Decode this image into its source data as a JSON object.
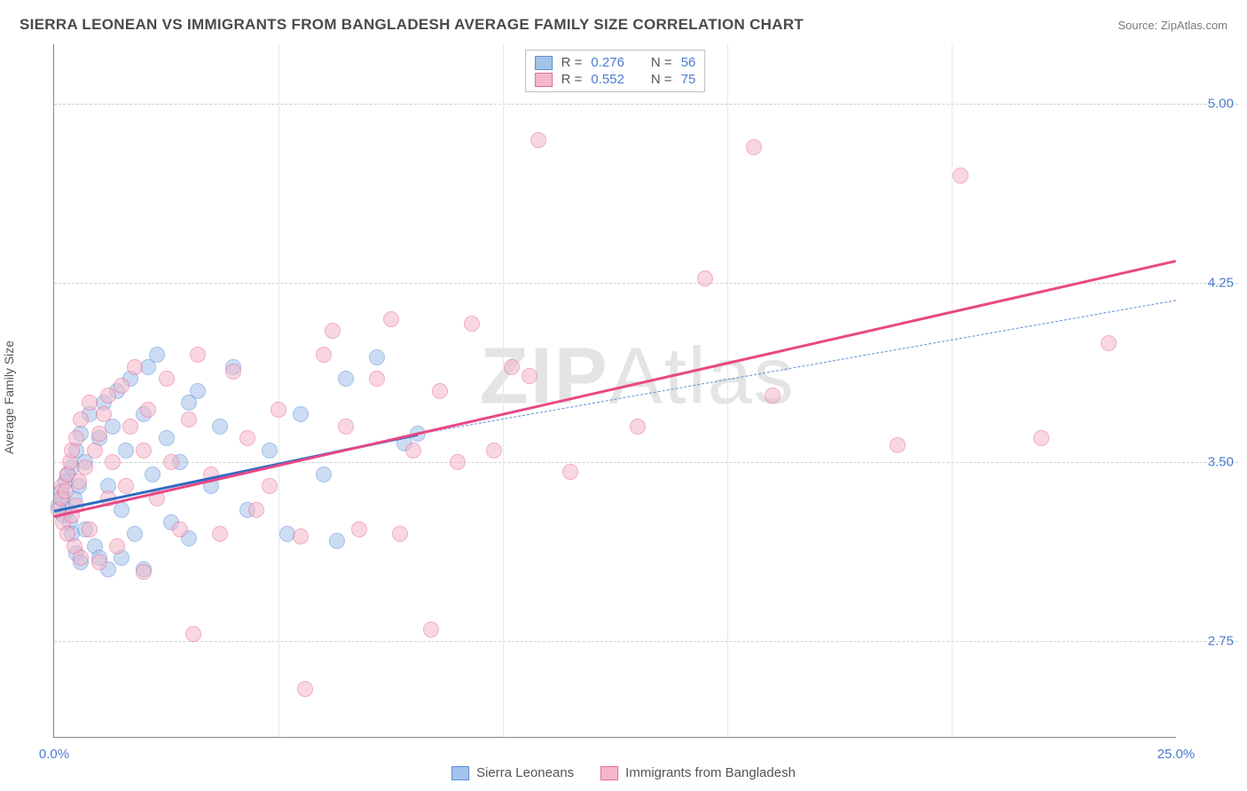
{
  "title": "SIERRA LEONEAN VS IMMIGRANTS FROM BANGLADESH AVERAGE FAMILY SIZE CORRELATION CHART",
  "source": "Source: ZipAtlas.com",
  "watermark_part1": "ZIP",
  "watermark_part2": "Atlas",
  "y_axis_label": "Average Family Size",
  "chart": {
    "type": "scatter",
    "xlim": [
      0,
      25
    ],
    "ylim": [
      2.35,
      5.25
    ],
    "x_ticks": [
      {
        "pos": 0,
        "label": "0.0%"
      },
      {
        "pos": 25,
        "label": "25.0%"
      }
    ],
    "x_minor_ticks": [
      5,
      10,
      15,
      20
    ],
    "y_ticks": [
      {
        "pos": 2.75,
        "label": "2.75"
      },
      {
        "pos": 3.5,
        "label": "3.50"
      },
      {
        "pos": 4.25,
        "label": "4.25"
      },
      {
        "pos": 5.0,
        "label": "5.00"
      }
    ],
    "marker_radius": 9,
    "series": [
      {
        "name": "Sierra Leoneans",
        "fill": "#a3c3eb",
        "stroke": "#5a8ed6",
        "r_value": "0.276",
        "n_value": "56",
        "trend": {
          "x1": 0,
          "y1": 3.3,
          "x2": 8.1,
          "y2": 3.62,
          "solid": true,
          "color": "#2f6bc2",
          "width": 3
        },
        "trend_dashed": {
          "x1": 8.1,
          "y1": 3.62,
          "x2": 25,
          "y2": 4.18,
          "color": "#5a8ed6",
          "width": 1
        },
        "points": [
          [
            0.1,
            3.32
          ],
          [
            0.15,
            3.38
          ],
          [
            0.2,
            3.28
          ],
          [
            0.2,
            3.35
          ],
          [
            0.25,
            3.42
          ],
          [
            0.3,
            3.3
          ],
          [
            0.3,
            3.45
          ],
          [
            0.35,
            3.25
          ],
          [
            0.4,
            3.48
          ],
          [
            0.4,
            3.2
          ],
          [
            0.45,
            3.35
          ],
          [
            0.5,
            3.55
          ],
          [
            0.5,
            3.12
          ],
          [
            0.55,
            3.4
          ],
          [
            0.6,
            3.08
          ],
          [
            0.6,
            3.62
          ],
          [
            0.7,
            3.5
          ],
          [
            0.7,
            3.22
          ],
          [
            0.8,
            3.7
          ],
          [
            0.9,
            3.15
          ],
          [
            1.0,
            3.6
          ],
          [
            1.0,
            3.1
          ],
          [
            1.1,
            3.75
          ],
          [
            1.2,
            3.4
          ],
          [
            1.2,
            3.05
          ],
          [
            1.3,
            3.65
          ],
          [
            1.4,
            3.8
          ],
          [
            1.5,
            3.3
          ],
          [
            1.5,
            3.1
          ],
          [
            1.6,
            3.55
          ],
          [
            1.7,
            3.85
          ],
          [
            1.8,
            3.2
          ],
          [
            2.0,
            3.7
          ],
          [
            2.0,
            3.05
          ],
          [
            2.1,
            3.9
          ],
          [
            2.2,
            3.45
          ],
          [
            2.3,
            3.95
          ],
          [
            2.5,
            3.6
          ],
          [
            2.6,
            3.25
          ],
          [
            2.8,
            3.5
          ],
          [
            3.0,
            3.75
          ],
          [
            3.0,
            3.18
          ],
          [
            3.2,
            3.8
          ],
          [
            3.5,
            3.4
          ],
          [
            3.7,
            3.65
          ],
          [
            4.0,
            3.9
          ],
          [
            4.3,
            3.3
          ],
          [
            4.8,
            3.55
          ],
          [
            5.2,
            3.2
          ],
          [
            5.5,
            3.7
          ],
          [
            6.0,
            3.45
          ],
          [
            6.3,
            3.17
          ],
          [
            6.5,
            3.85
          ],
          [
            7.2,
            3.94
          ],
          [
            7.8,
            3.58
          ],
          [
            8.1,
            3.62
          ]
        ]
      },
      {
        "name": "Immigrants from Bangladesh",
        "fill": "#f5b8ca",
        "stroke": "#e76a94",
        "r_value": "0.552",
        "n_value": "75",
        "trend": {
          "x1": 0,
          "y1": 3.28,
          "x2": 25,
          "y2": 4.35,
          "solid": true,
          "color": "#e84884",
          "width": 3
        },
        "points": [
          [
            0.1,
            3.3
          ],
          [
            0.15,
            3.35
          ],
          [
            0.18,
            3.4
          ],
          [
            0.2,
            3.25
          ],
          [
            0.25,
            3.38
          ],
          [
            0.3,
            3.45
          ],
          [
            0.3,
            3.2
          ],
          [
            0.35,
            3.5
          ],
          [
            0.4,
            3.28
          ],
          [
            0.4,
            3.55
          ],
          [
            0.45,
            3.15
          ],
          [
            0.5,
            3.6
          ],
          [
            0.5,
            3.32
          ],
          [
            0.55,
            3.42
          ],
          [
            0.6,
            3.68
          ],
          [
            0.6,
            3.1
          ],
          [
            0.7,
            3.48
          ],
          [
            0.8,
            3.75
          ],
          [
            0.8,
            3.22
          ],
          [
            0.9,
            3.55
          ],
          [
            1.0,
            3.62
          ],
          [
            1.0,
            3.08
          ],
          [
            1.1,
            3.7
          ],
          [
            1.2,
            3.35
          ],
          [
            1.2,
            3.78
          ],
          [
            1.3,
            3.5
          ],
          [
            1.4,
            3.15
          ],
          [
            1.5,
            3.82
          ],
          [
            1.6,
            3.4
          ],
          [
            1.7,
            3.65
          ],
          [
            1.8,
            3.9
          ],
          [
            2.0,
            3.55
          ],
          [
            2.0,
            3.04
          ],
          [
            2.1,
            3.72
          ],
          [
            2.3,
            3.35
          ],
          [
            2.5,
            3.85
          ],
          [
            2.6,
            3.5
          ],
          [
            2.8,
            3.22
          ],
          [
            3.0,
            3.68
          ],
          [
            3.1,
            2.78
          ],
          [
            3.2,
            3.95
          ],
          [
            3.5,
            3.45
          ],
          [
            3.7,
            3.2
          ],
          [
            4.0,
            3.88
          ],
          [
            4.3,
            3.6
          ],
          [
            4.5,
            3.3
          ],
          [
            4.8,
            3.4
          ],
          [
            5.0,
            3.72
          ],
          [
            5.5,
            3.19
          ],
          [
            5.6,
            2.55
          ],
          [
            6.0,
            3.95
          ],
          [
            6.2,
            4.05
          ],
          [
            6.5,
            3.65
          ],
          [
            6.8,
            3.22
          ],
          [
            7.2,
            3.85
          ],
          [
            7.5,
            4.1
          ],
          [
            7.7,
            3.2
          ],
          [
            8.0,
            3.55
          ],
          [
            8.4,
            2.8
          ],
          [
            8.6,
            3.8
          ],
          [
            9.0,
            3.5
          ],
          [
            9.3,
            4.08
          ],
          [
            9.8,
            3.55
          ],
          [
            10.2,
            3.9
          ],
          [
            10.6,
            3.86
          ],
          [
            10.8,
            4.85
          ],
          [
            11.5,
            3.46
          ],
          [
            13.0,
            3.65
          ],
          [
            14.5,
            4.27
          ],
          [
            15.6,
            4.82
          ],
          [
            16.0,
            3.78
          ],
          [
            18.8,
            3.57
          ],
          [
            20.2,
            4.7
          ],
          [
            22.0,
            3.6
          ],
          [
            23.5,
            4.0
          ]
        ]
      }
    ]
  },
  "rn_legend_labels": {
    "r": "R =",
    "n": "N ="
  },
  "bottom_legend": [
    {
      "label": "Sierra Leoneans",
      "fill": "#a3c3eb",
      "stroke": "#5a8ed6"
    },
    {
      "label": "Immigrants from Bangladesh",
      "fill": "#f5b8ca",
      "stroke": "#e76a94"
    }
  ]
}
